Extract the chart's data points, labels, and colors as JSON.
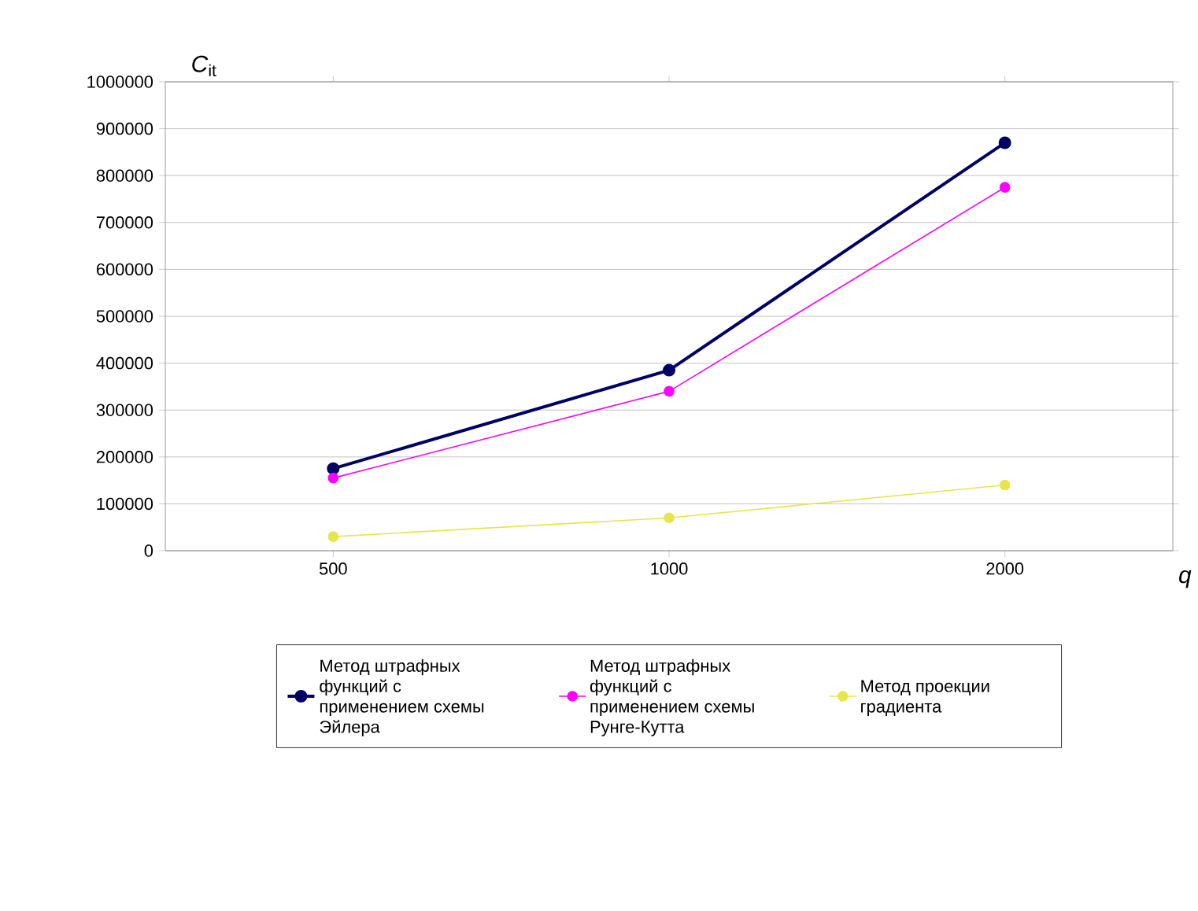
{
  "chart_data": {
    "type": "line",
    "xlabel": "q",
    "ylabel": "*C*$_{it}$",
    "categories": [
      "500",
      "1000",
      "2000"
    ],
    "series": [
      {
        "name": "Метод штрафных функций с применением схемы Эйлера",
        "color": "#000066",
        "values": [
          175000,
          385000,
          870000
        ]
      },
      {
        "name": "Метод штрафных функций с применением схемы Рунге-Кутта",
        "color": "#ff00ff",
        "values": [
          155000,
          340000,
          775000
        ]
      },
      {
        "name": "Метод проекции градиента",
        "color": "#e6e64c",
        "values": [
          30000,
          70000,
          140000
        ]
      }
    ],
    "ylim": [
      0,
      1000000
    ],
    "yticks": [
      0,
      100000,
      200000,
      300000,
      400000,
      500000,
      600000,
      700000,
      800000,
      900000,
      1000000
    ],
    "grid": "y",
    "legend": "bottom",
    "marker": "circle",
    "line_style": "solid"
  }
}
